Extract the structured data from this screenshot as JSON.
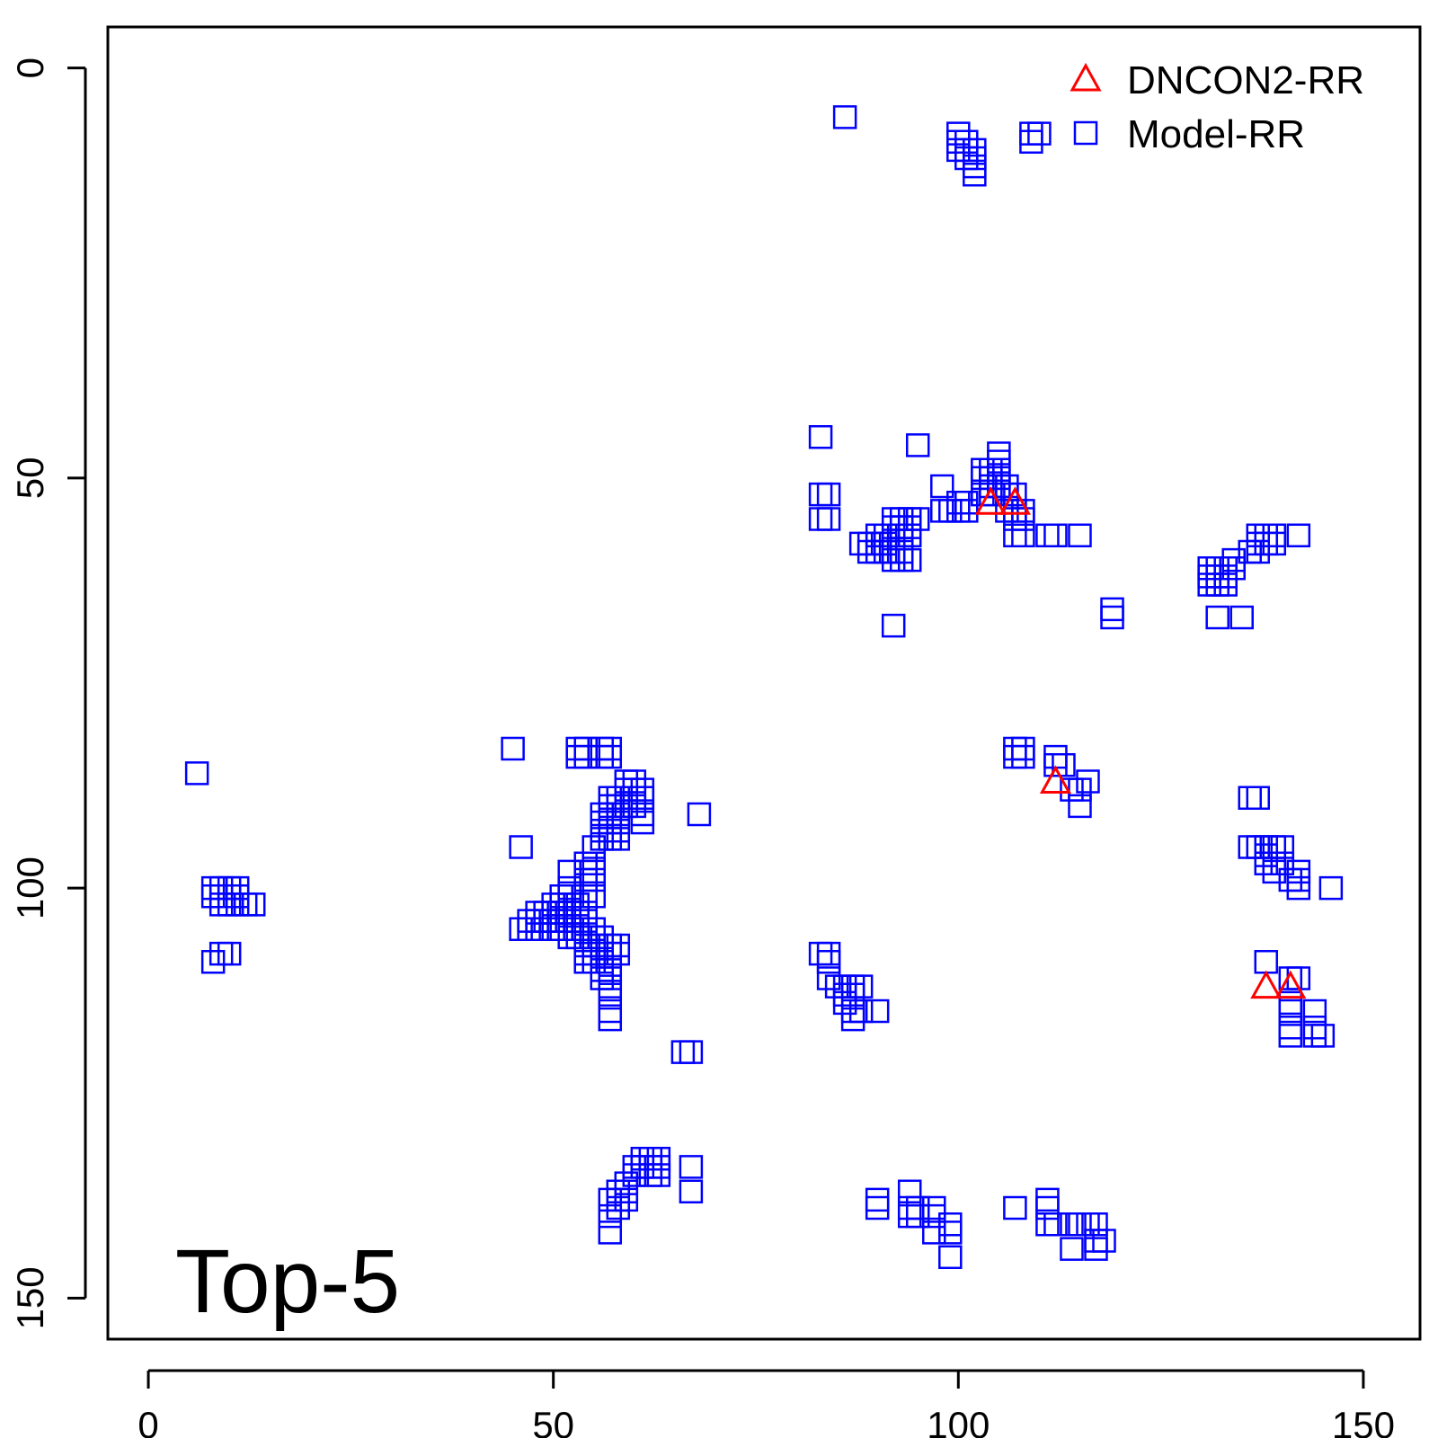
{
  "chart_data": {
    "type": "scatter",
    "title": "",
    "xlabel": "",
    "ylabel": "",
    "xlim": [
      -5,
      157
    ],
    "ylim": [
      155,
      -5
    ],
    "y_inverted": true,
    "x_ticks": [
      0,
      50,
      100,
      150
    ],
    "y_ticks": [
      0,
      50,
      100,
      150
    ],
    "grid": false,
    "legend_position": "top-right",
    "annotation": "Top-5",
    "colors": {
      "DNCON2-RR": "#ff0000",
      "Model-RR": "#0000ff"
    },
    "series": [
      {
        "name": "DNCON2-RR",
        "marker": "triangle",
        "points": [
          [
            104,
            53
          ],
          [
            107,
            53
          ],
          [
            112,
            87
          ],
          [
            138,
            112
          ],
          [
            141,
            112
          ]
        ]
      },
      {
        "name": "Model-RR",
        "marker": "square",
        "points": [
          [
            86,
            6
          ],
          [
            100,
            8
          ],
          [
            100,
            9
          ],
          [
            101,
            9
          ],
          [
            100,
            10
          ],
          [
            101,
            10
          ],
          [
            102,
            10
          ],
          [
            101,
            11
          ],
          [
            102,
            11
          ],
          [
            102,
            12
          ],
          [
            102,
            13
          ],
          [
            109,
            8
          ],
          [
            110,
            8
          ],
          [
            109,
            9
          ],
          [
            83,
            45
          ],
          [
            95,
            46
          ],
          [
            83,
            52
          ],
          [
            84,
            52
          ],
          [
            83,
            55
          ],
          [
            84,
            55
          ],
          [
            98,
            51
          ],
          [
            100,
            53
          ],
          [
            101,
            53
          ],
          [
            98,
            54
          ],
          [
            99,
            54
          ],
          [
            100,
            54
          ],
          [
            101,
            54
          ],
          [
            103,
            49
          ],
          [
            104,
            49
          ],
          [
            105,
            49
          ],
          [
            103,
            50
          ],
          [
            104,
            50
          ],
          [
            105,
            50
          ],
          [
            104,
            51
          ],
          [
            105,
            51
          ],
          [
            103,
            52
          ],
          [
            104,
            52
          ],
          [
            105,
            51
          ],
          [
            106,
            51
          ],
          [
            105,
            47
          ],
          [
            105,
            48
          ],
          [
            106,
            52
          ],
          [
            107,
            52
          ],
          [
            106,
            54
          ],
          [
            107,
            54
          ],
          [
            108,
            54
          ],
          [
            107,
            55
          ],
          [
            108,
            55
          ],
          [
            107,
            57
          ],
          [
            108,
            57
          ],
          [
            111,
            57
          ],
          [
            112,
            57
          ],
          [
            115,
            57
          ],
          [
            88,
            58
          ],
          [
            89,
            58
          ],
          [
            90,
            58
          ],
          [
            91,
            58
          ],
          [
            89,
            59
          ],
          [
            90,
            59
          ],
          [
            91,
            59
          ],
          [
            92,
            59
          ],
          [
            93,
            59
          ],
          [
            90,
            57
          ],
          [
            91,
            57
          ],
          [
            92,
            57
          ],
          [
            93,
            57
          ],
          [
            92,
            56
          ],
          [
            93,
            56
          ],
          [
            94,
            56
          ],
          [
            92,
            55
          ],
          [
            93,
            55
          ],
          [
            94,
            55
          ],
          [
            95,
            55
          ],
          [
            93,
            56
          ],
          [
            94,
            57
          ],
          [
            92,
            60
          ],
          [
            93,
            60
          ],
          [
            94,
            60
          ],
          [
            92,
            68
          ],
          [
            119,
            66
          ],
          [
            119,
            67
          ],
          [
            131,
            61
          ],
          [
            132,
            61
          ],
          [
            131,
            62
          ],
          [
            132,
            62
          ],
          [
            133,
            62
          ],
          [
            131,
            63
          ],
          [
            132,
            63
          ],
          [
            133,
            63
          ],
          [
            133,
            61
          ],
          [
            134,
            61
          ],
          [
            134,
            60
          ],
          [
            136,
            59
          ],
          [
            137,
            59
          ],
          [
            137,
            58
          ],
          [
            138,
            58
          ],
          [
            139,
            58
          ],
          [
            137,
            57
          ],
          [
            138,
            57
          ],
          [
            139,
            57
          ],
          [
            142,
            57
          ],
          [
            132,
            67
          ],
          [
            135,
            67
          ],
          [
            45,
            83
          ],
          [
            53,
            83
          ],
          [
            54,
            83
          ],
          [
            56,
            83
          ],
          [
            57,
            83
          ],
          [
            53,
            84
          ],
          [
            54,
            84
          ],
          [
            56,
            84
          ],
          [
            57,
            84
          ],
          [
            107,
            83
          ],
          [
            108,
            83
          ],
          [
            107,
            84
          ],
          [
            108,
            84
          ],
          [
            112,
            84
          ],
          [
            112,
            85
          ],
          [
            113,
            85
          ],
          [
            116,
            87
          ],
          [
            114,
            88
          ],
          [
            115,
            88
          ],
          [
            115,
            90
          ],
          [
            6,
            86
          ],
          [
            8,
            100
          ],
          [
            9,
            100
          ],
          [
            10,
            100
          ],
          [
            11,
            100
          ],
          [
            8,
            101
          ],
          [
            9,
            101
          ],
          [
            10,
            101
          ],
          [
            11,
            101
          ],
          [
            9,
            102
          ],
          [
            10,
            102
          ],
          [
            11,
            102
          ],
          [
            12,
            102
          ],
          [
            13,
            102
          ],
          [
            9,
            108
          ],
          [
            10,
            108
          ],
          [
            8,
            109
          ],
          [
            46,
            95
          ],
          [
            52,
            98
          ],
          [
            54,
            97
          ],
          [
            55,
            97
          ],
          [
            54,
            98
          ],
          [
            55,
            98
          ],
          [
            54,
            99
          ],
          [
            55,
            99
          ],
          [
            55,
            95
          ],
          [
            56,
            92
          ],
          [
            56,
            93
          ],
          [
            56,
            94
          ],
          [
            57,
            92
          ],
          [
            57,
            93
          ],
          [
            57,
            94
          ],
          [
            58,
            92
          ],
          [
            58,
            93
          ],
          [
            58,
            94
          ],
          [
            56,
            91
          ],
          [
            57,
            91
          ],
          [
            58,
            91
          ],
          [
            57,
            90
          ],
          [
            58,
            90
          ],
          [
            59,
            90
          ],
          [
            60,
            90
          ],
          [
            57,
            89
          ],
          [
            58,
            89
          ],
          [
            59,
            89
          ],
          [
            60,
            89
          ],
          [
            59,
            88
          ],
          [
            60,
            88
          ],
          [
            61,
            88
          ],
          [
            61,
            89
          ],
          [
            59,
            87
          ],
          [
            60,
            87
          ],
          [
            61,
            91
          ],
          [
            61,
            92
          ],
          [
            68,
            91
          ],
          [
            46,
            105
          ],
          [
            47,
            104
          ],
          [
            47,
            105
          ],
          [
            48,
            103
          ],
          [
            48,
            104
          ],
          [
            48,
            105
          ],
          [
            49,
            103
          ],
          [
            49,
            104
          ],
          [
            50,
            102
          ],
          [
            50,
            103
          ],
          [
            50,
            104
          ],
          [
            50,
            105
          ],
          [
            51,
            101
          ],
          [
            51,
            102
          ],
          [
            51,
            103
          ],
          [
            51,
            104
          ],
          [
            51,
            105
          ],
          [
            52,
            100
          ],
          [
            52,
            101
          ],
          [
            52,
            102
          ],
          [
            52,
            103
          ],
          [
            52,
            104
          ],
          [
            52,
            106
          ],
          [
            53,
            102
          ],
          [
            53,
            103
          ],
          [
            53,
            105
          ],
          [
            53,
            106
          ],
          [
            54,
            103
          ],
          [
            54,
            104
          ],
          [
            54,
            105
          ],
          [
            54,
            106
          ],
          [
            54,
            107
          ],
          [
            55,
            105
          ],
          [
            55,
            106
          ],
          [
            55,
            107
          ],
          [
            55,
            108
          ],
          [
            55,
            109
          ],
          [
            54,
            108
          ],
          [
            54,
            109
          ],
          [
            56,
            106
          ],
          [
            56,
            107
          ],
          [
            56,
            108
          ],
          [
            56,
            109
          ],
          [
            57,
            107
          ],
          [
            57,
            108
          ],
          [
            58,
            107
          ],
          [
            58,
            108
          ],
          [
            56,
            110
          ],
          [
            57,
            110
          ],
          [
            56,
            111
          ],
          [
            57,
            111
          ],
          [
            57,
            112
          ],
          [
            57,
            113
          ],
          [
            57,
            115
          ],
          [
            57,
            116
          ],
          [
            54,
            101
          ],
          [
            55,
            101
          ],
          [
            66,
            120
          ],
          [
            67,
            120
          ],
          [
            83,
            108
          ],
          [
            84,
            108
          ],
          [
            84,
            109
          ],
          [
            84,
            111
          ],
          [
            85,
            112
          ],
          [
            86,
            112
          ],
          [
            87,
            112
          ],
          [
            88,
            112
          ],
          [
            86,
            113
          ],
          [
            87,
            113
          ],
          [
            86,
            114
          ],
          [
            87,
            115
          ],
          [
            88,
            115
          ],
          [
            90,
            115
          ],
          [
            87,
            116
          ],
          [
            60,
            134
          ],
          [
            61,
            133
          ],
          [
            62,
            133
          ],
          [
            63,
            133
          ],
          [
            61,
            134
          ],
          [
            62,
            134
          ],
          [
            63,
            134
          ],
          [
            62,
            135
          ],
          [
            63,
            135
          ],
          [
            60,
            135
          ],
          [
            59,
            136
          ],
          [
            58,
            137
          ],
          [
            59,
            137
          ],
          [
            58,
            138
          ],
          [
            59,
            138
          ],
          [
            57,
            138
          ],
          [
            58,
            139
          ],
          [
            57,
            140
          ],
          [
            57,
            142
          ],
          [
            67,
            134
          ],
          [
            67,
            137
          ],
          [
            90,
            138
          ],
          [
            90,
            139
          ],
          [
            94,
            137
          ],
          [
            94,
            139
          ],
          [
            95,
            139
          ],
          [
            94,
            140
          ],
          [
            95,
            140
          ],
          [
            97,
            139
          ],
          [
            97,
            140
          ],
          [
            97,
            142
          ],
          [
            99,
            141
          ],
          [
            99,
            142
          ],
          [
            99,
            145
          ],
          [
            107,
            139
          ],
          [
            111,
            138
          ],
          [
            111,
            139
          ],
          [
            111,
            141
          ],
          [
            112,
            141
          ],
          [
            114,
            141
          ],
          [
            115,
            141
          ],
          [
            116,
            141
          ],
          [
            117,
            141
          ],
          [
            117,
            143
          ],
          [
            118,
            143
          ],
          [
            114,
            144
          ],
          [
            117,
            144
          ],
          [
            136,
            89
          ],
          [
            137,
            89
          ],
          [
            136,
            95
          ],
          [
            137,
            95
          ],
          [
            138,
            95
          ],
          [
            139,
            95
          ],
          [
            140,
            95
          ],
          [
            138,
            96
          ],
          [
            138,
            97
          ],
          [
            139,
            97
          ],
          [
            140,
            97
          ],
          [
            139,
            98
          ],
          [
            141,
            99
          ],
          [
            142,
            99
          ],
          [
            142,
            98
          ],
          [
            142,
            100
          ],
          [
            146,
            100
          ],
          [
            138,
            109
          ],
          [
            141,
            111
          ],
          [
            142,
            111
          ],
          [
            141,
            114
          ],
          [
            141,
            115
          ],
          [
            141,
            117
          ],
          [
            141,
            118
          ],
          [
            144,
            115
          ],
          [
            144,
            117
          ],
          [
            144,
            118
          ],
          [
            145,
            118
          ]
        ]
      }
    ]
  }
}
